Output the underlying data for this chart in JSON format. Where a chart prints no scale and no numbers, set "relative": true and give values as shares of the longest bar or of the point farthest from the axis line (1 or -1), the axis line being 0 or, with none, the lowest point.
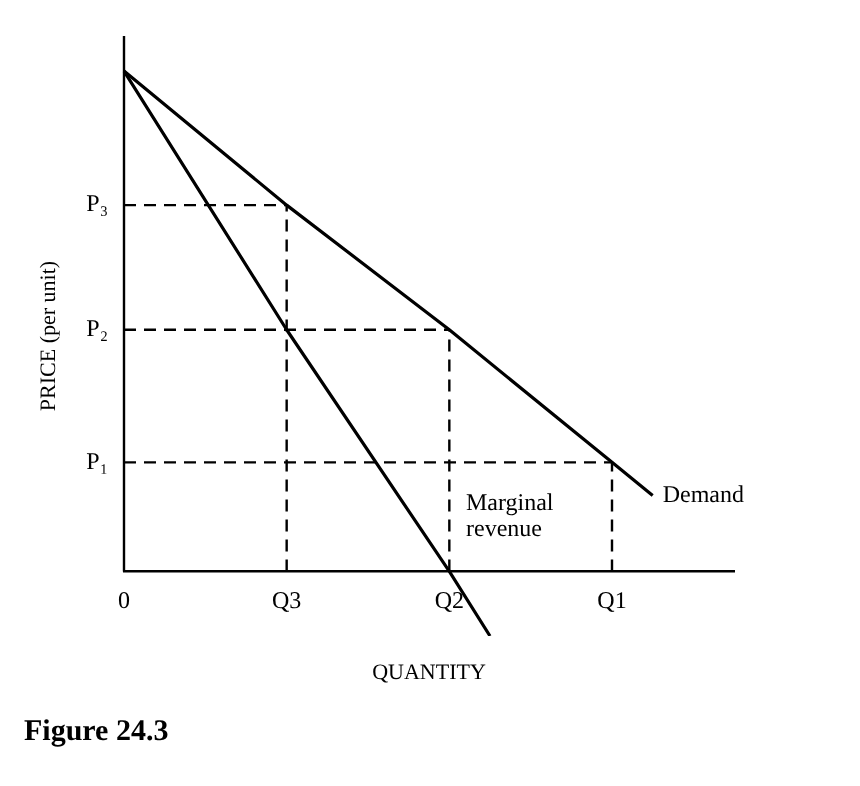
{
  "chart_data": {
    "type": "line",
    "title": "Figure 24.3",
    "xlabel": "QUANTITY",
    "ylabel": "PRICE (per unit)",
    "relative": true,
    "legend": false,
    "marker": "none",
    "line_style": "solid",
    "categories": [
      "0",
      null,
      null,
      null,
      "Q3",
      null,
      null,
      null,
      "Q2",
      null,
      null,
      null,
      "Q1",
      null,
      null,
      null
    ],
    "ref_lines": [
      {
        "axis": "y",
        "value": 0.732,
        "label": "P₃",
        "line_style": "dashed",
        "color": "#000000"
      },
      {
        "axis": "y",
        "value": 0.483,
        "label": "P₂",
        "line_style": "dashed",
        "color": "#000000"
      },
      {
        "axis": "y",
        "value": 0.218,
        "label": "P₁",
        "line_style": "dashed",
        "color": "#000000"
      },
      {
        "axis": "x",
        "value": "Q3",
        "line_style": "dashed",
        "color": "#000000"
      },
      {
        "axis": "x",
        "value": "Q2",
        "line_style": "dashed",
        "color": "#000000"
      },
      {
        "axis": "x",
        "value": "Q1",
        "line_style": "dashed",
        "color": "#000000"
      }
    ],
    "series": [
      {
        "name": "Demand",
        "color": "#000000",
        "values": [
          1,
          null,
          null,
          null,
          0.732,
          null,
          null,
          null,
          0.483,
          null,
          null,
          null,
          0.218,
          0.152,
          null,
          null
        ]
      },
      {
        "name": "Marginal revenue",
        "color": "#000000",
        "values": [
          1,
          null,
          null,
          null,
          0.483,
          null,
          null,
          null,
          0,
          -0.129,
          null,
          null,
          null,
          null,
          null,
          null
        ]
      }
    ]
  }
}
